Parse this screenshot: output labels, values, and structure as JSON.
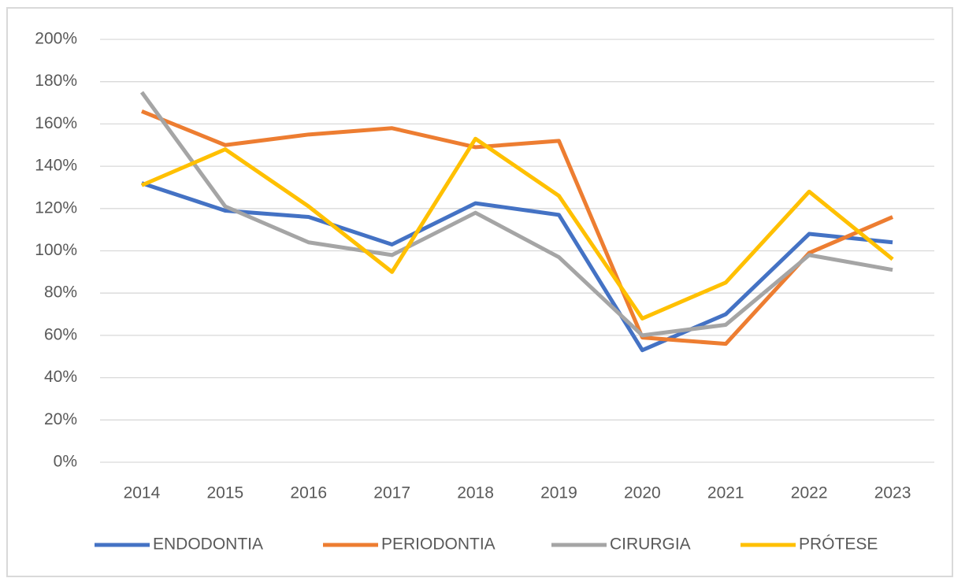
{
  "chart_data": {
    "type": "line",
    "categories": [
      "2014",
      "2015",
      "2016",
      "2017",
      "2018",
      "2019",
      "2020",
      "2021",
      "2022",
      "2023"
    ],
    "series": [
      {
        "name": "ENDODONTIA",
        "color": "#4472c4",
        "values": [
          132,
          119,
          116,
          103,
          122.5,
          117,
          53,
          70,
          108,
          104
        ]
      },
      {
        "name": "PERIODONTIA",
        "color": "#ed7d31",
        "values": [
          166,
          150,
          155,
          158,
          149,
          152,
          59,
          56,
          99,
          116
        ]
      },
      {
        "name": "CIRURGIA",
        "color": "#a5a5a5",
        "values": [
          175,
          121,
          104,
          98,
          118,
          97,
          60,
          65,
          98,
          91
        ]
      },
      {
        "name": "PRÓTESE",
        "color": "#ffc000",
        "values": [
          131,
          148,
          121,
          90,
          153,
          126,
          68,
          85,
          128,
          96
        ]
      }
    ],
    "ylim": [
      0,
      200
    ],
    "yticks": [
      {
        "value": 0,
        "label": "0%"
      },
      {
        "value": 20,
        "label": "20%"
      },
      {
        "value": 40,
        "label": "40%"
      },
      {
        "value": 60,
        "label": "60%"
      },
      {
        "value": 80,
        "label": "80%"
      },
      {
        "value": 100,
        "label": "100%"
      },
      {
        "value": 120,
        "label": "120%"
      },
      {
        "value": 140,
        "label": "140%"
      },
      {
        "value": 160,
        "label": "160%"
      },
      {
        "value": 180,
        "label": "180%"
      },
      {
        "value": 200,
        "label": "200%"
      }
    ],
    "grid": true,
    "legend": "bottom"
  }
}
